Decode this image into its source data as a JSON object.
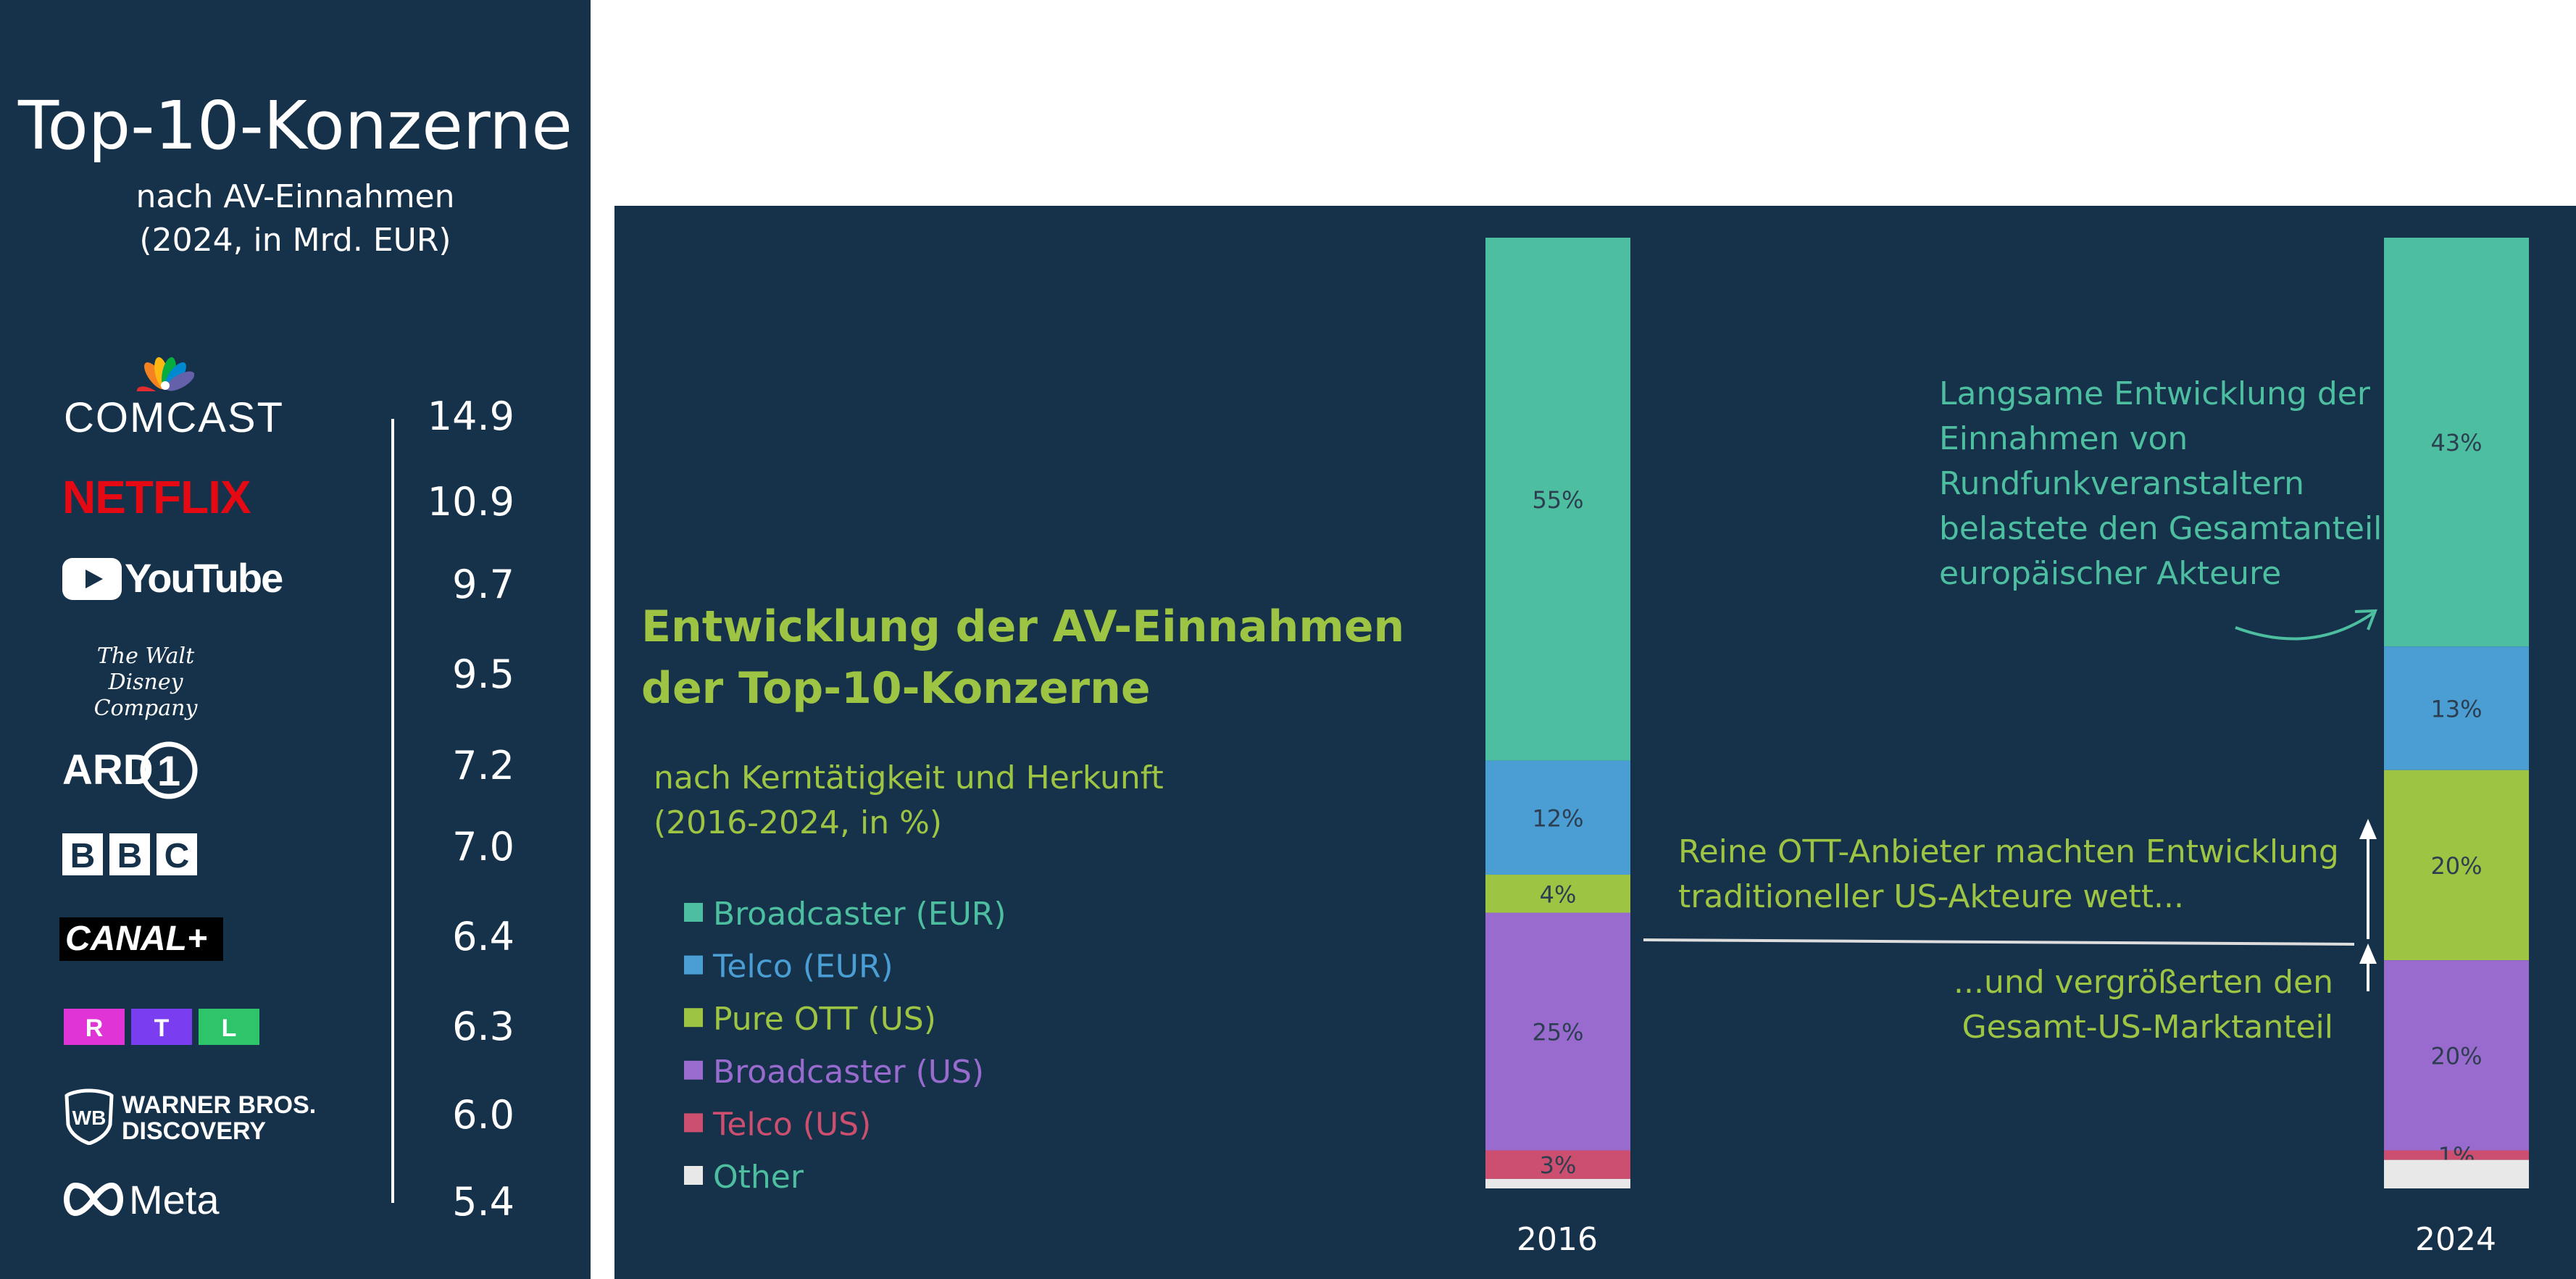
{
  "ranking": {
    "title": "Top-10-Konzerne",
    "subtitle_line1": "nach AV-Einnahmen",
    "subtitle_line2": "(2024, in Mrd. EUR)",
    "items": [
      {
        "name": "COMCAST",
        "value": "14.9"
      },
      {
        "name": "NETFLIX",
        "value": "10.9"
      },
      {
        "name": "YouTube",
        "value": "9.7"
      },
      {
        "name": "The Walt Disney Company",
        "value": "9.5"
      },
      {
        "name": "ARD",
        "value": "7.2"
      },
      {
        "name": "BBC",
        "value": "7.0"
      },
      {
        "name": "CANAL+",
        "value": "6.4"
      },
      {
        "name": "RTL",
        "value": "6.3"
      },
      {
        "name": "WARNER BROS. DISCOVERY",
        "value": "6.0"
      },
      {
        "name": "Meta",
        "value": "5.4"
      }
    ]
  },
  "chart_data": {
    "type": "stacked-bar",
    "title_line1": "Entwicklung der AV-Einnahmen",
    "title_line2": "der Top-10-Konzerne",
    "subtitle_line1": "nach Kerntätigkeit und Herkunft",
    "subtitle_line2": "(2016-2024, in %)",
    "categories": [
      "2016",
      "2024"
    ],
    "series": [
      {
        "name": "Broadcaster (EUR)",
        "color": "#4dbfa0",
        "values": [
          55,
          43
        ],
        "labels": [
          "55%",
          "43%"
        ]
      },
      {
        "name": "Telco (EUR)",
        "color": "#4a9ed4",
        "values": [
          12,
          13
        ],
        "labels": [
          "12%",
          "13%"
        ]
      },
      {
        "name": "Pure OTT (US)",
        "color": "#9ec443",
        "values": [
          4,
          20
        ],
        "labels": [
          "4%",
          "20%"
        ]
      },
      {
        "name": "Broadcaster (US)",
        "color": "#9a6bcf",
        "values": [
          25,
          20
        ],
        "labels": [
          "25%",
          "20%"
        ]
      },
      {
        "name": "Telco (US)",
        "color": "#cd4f6f",
        "values": [
          3,
          1
        ],
        "labels": [
          "3%",
          "1%"
        ]
      },
      {
        "name": "Other",
        "color": "#e8e8e8",
        "values": [
          1,
          3
        ],
        "labels": [
          "",
          ""
        ]
      }
    ],
    "annotations": {
      "top_right": [
        "Langsame Entwicklung der",
        "Einnahmen von",
        "Rundfunkveranstaltern",
        "belastete den Gesamtanteil",
        "europäischer Akteure"
      ],
      "middle": [
        "Reine OTT-Anbieter machten Entwicklung",
        "traditioneller US-Akteure wett..."
      ],
      "bottom": [
        "...und vergrößerten den",
        "Gesamt-US-Marktanteil"
      ]
    },
    "colors": {
      "annotation_teal": "#4dbfa0",
      "annotation_green": "#9ec443",
      "panel": "#16324b"
    }
  }
}
